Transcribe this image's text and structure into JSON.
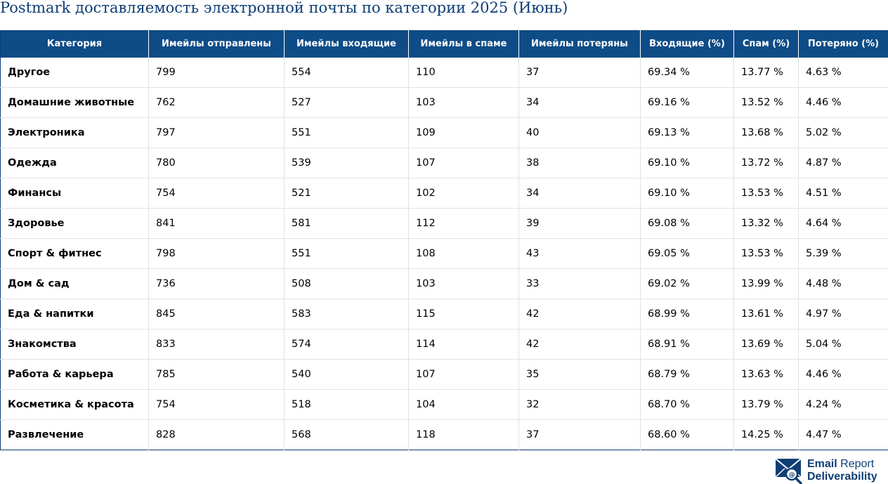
{
  "title": "Postmark доставляемость электронной почты по категории 2025 (Июнь)",
  "chart_data": {
    "type": "table",
    "columns": [
      "Категория",
      "Имейлы отправлены",
      "Имейлы входящие",
      "Имейлы в спаме",
      "Имейлы потеряны",
      "Входящие (%)",
      "Спам (%)",
      "Потеряно (%)"
    ],
    "rows": [
      [
        "Другое",
        "799",
        "554",
        "110",
        "37",
        "69.34 %",
        "13.77 %",
        "4.63 %"
      ],
      [
        "Домашние животные",
        "762",
        "527",
        "103",
        "34",
        "69.16 %",
        "13.52 %",
        "4.46 %"
      ],
      [
        "Электроника",
        "797",
        "551",
        "109",
        "40",
        "69.13 %",
        "13.68 %",
        "5.02 %"
      ],
      [
        "Одежда",
        "780",
        "539",
        "107",
        "38",
        "69.10 %",
        "13.72 %",
        "4.87 %"
      ],
      [
        "Финансы",
        "754",
        "521",
        "102",
        "34",
        "69.10 %",
        "13.53 %",
        "4.51 %"
      ],
      [
        "Здоровье",
        "841",
        "581",
        "112",
        "39",
        "69.08 %",
        "13.32 %",
        "4.64 %"
      ],
      [
        "Спорт & фитнес",
        "798",
        "551",
        "108",
        "43",
        "69.05 %",
        "13.53 %",
        "5.39 %"
      ],
      [
        "Дом & сад",
        "736",
        "508",
        "103",
        "33",
        "69.02 %",
        "13.99 %",
        "4.48 %"
      ],
      [
        "Еда & напитки",
        "845",
        "583",
        "115",
        "42",
        "68.99 %",
        "13.61 %",
        "4.97 %"
      ],
      [
        "Знакомства",
        "833",
        "574",
        "114",
        "42",
        "68.91 %",
        "13.69 %",
        "5.04 %"
      ],
      [
        "Работа & карьера",
        "785",
        "540",
        "107",
        "35",
        "68.79 %",
        "13.63 %",
        "4.46 %"
      ],
      [
        "Косметика & красота",
        "754",
        "518",
        "104",
        "32",
        "68.70 %",
        "13.79 %",
        "4.24 %"
      ],
      [
        "Развлечение",
        "828",
        "568",
        "118",
        "37",
        "68.60 %",
        "14.25 %",
        "4.47 %"
      ]
    ]
  },
  "logo": {
    "line1_bold": "Email",
    "line1_regular": "Report",
    "line2": "Deliverability",
    "icon": "envelope-at-magnifier-icon",
    "color": "#0e3e75"
  },
  "colors": {
    "header_bg": "#0e4c87",
    "title": "#0e3e75"
  }
}
